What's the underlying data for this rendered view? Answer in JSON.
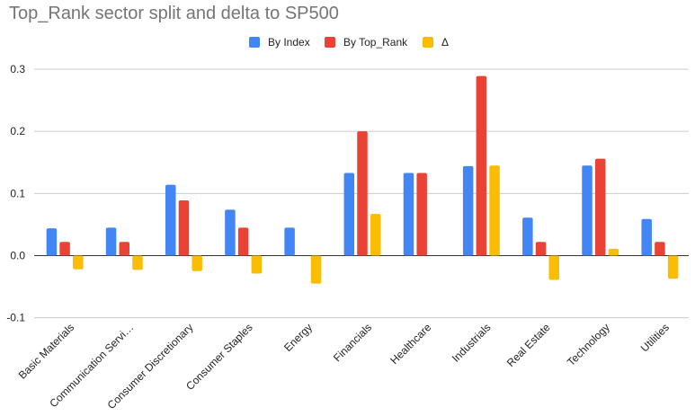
{
  "chart_data": {
    "type": "bar",
    "title": "Top_Rank sector split and delta to SP500",
    "categories": [
      "Basic Materials",
      "Communication Servi…",
      "Consumer Discretionary",
      "Consumer Staples",
      "Energy",
      "Financials",
      "Healthcare",
      "Industrials",
      "Real Estate",
      "Technology",
      "Utilities"
    ],
    "series": [
      {
        "name": "By Index",
        "color": "#4285f4",
        "values": [
          0.044,
          0.045,
          0.114,
          0.074,
          0.045,
          0.133,
          0.133,
          0.144,
          0.061,
          0.145,
          0.059
        ]
      },
      {
        "name": "By Top_Rank",
        "color": "#ea4335",
        "values": [
          0.022,
          0.022,
          0.089,
          0.045,
          0.0,
          0.2,
          0.133,
          0.289,
          0.022,
          0.156,
          0.022
        ]
      },
      {
        "name": "Δ",
        "color": "#fbbc04",
        "values": [
          -0.022,
          -0.023,
          -0.025,
          -0.029,
          -0.045,
          0.067,
          0.0,
          0.145,
          -0.039,
          0.011,
          -0.037
        ]
      }
    ],
    "yticks": [
      "0.3",
      "0.2",
      "0.1",
      "0.0",
      "-0.1"
    ],
    "ylim": [
      -0.1,
      0.3
    ],
    "grid": true,
    "legend_position": "top-center"
  }
}
